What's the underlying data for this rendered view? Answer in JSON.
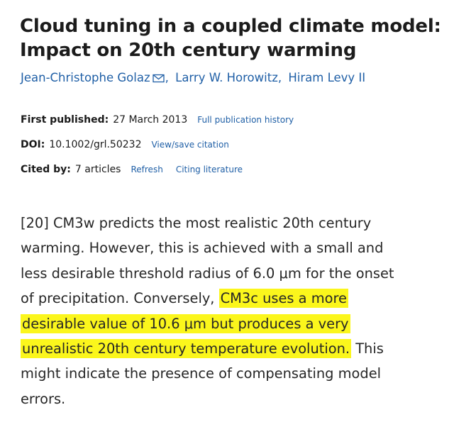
{
  "article": {
    "title_line1": "Cloud tuning in a coupled climate model:",
    "title_line2": "Impact on 20th century warming",
    "authors": [
      "Jean-Christophe Golaz",
      "Larry W. Horowitz,",
      "Hiram Levy II"
    ],
    "author_separator": ",",
    "contact_icon": "envelope-icon",
    "first_published": {
      "label": "First published:",
      "value": "27 March 2013",
      "link": "Full publication history"
    },
    "doi": {
      "label": "DOI:",
      "value": "10.1002/grl.50232",
      "link": "View/save citation"
    },
    "cited_by": {
      "label": "Cited by:",
      "value": "7 articles",
      "link1": "Refresh",
      "link2": "Citing literature"
    }
  },
  "excerpt": {
    "line1": "[20] CM3w predicts the most realistic 20th century",
    "line2": "warming. However, this is achieved with a small and",
    "line3": "less desirable threshold radius of 6.0  μm for the onset",
    "line4_plain": "of precipitation. Conversely, ",
    "line4_highlight": "CM3c uses a more",
    "line5_highlight": "desirable value of 10.6  μm but produces a very",
    "line6_highlight": "unrealistic 20th century temperature evolution.",
    "line6_plain": " This",
    "line7": "might indicate the presence of compensating model",
    "line8": "errors.",
    "highlight_color": "#fbf61c"
  },
  "colors": {
    "link": "#1f5fa6",
    "text": "#1a1a1a"
  }
}
